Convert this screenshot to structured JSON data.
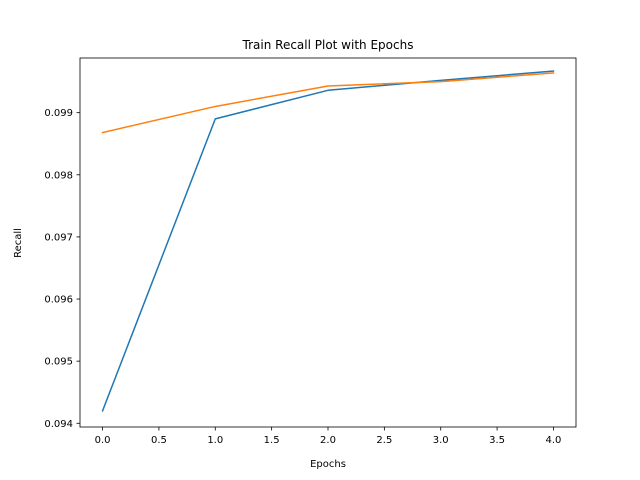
{
  "chart_data": {
    "type": "line",
    "title": "Train Recall Plot with Epochs",
    "xlabel": "Epochs",
    "ylabel": "Recall",
    "x": [
      0,
      1,
      2,
      3,
      4
    ],
    "xlim": [
      -0.2,
      4.2
    ],
    "ylim": [
      0.09394,
      0.09988
    ],
    "xticks": [
      0.0,
      0.5,
      1.0,
      1.5,
      2.0,
      2.5,
      3.0,
      3.5,
      4.0
    ],
    "xtick_labels": [
      "0.0",
      "0.5",
      "1.0",
      "1.5",
      "2.0",
      "2.5",
      "3.0",
      "3.5",
      "4.0"
    ],
    "yticks": [
      0.094,
      0.095,
      0.096,
      0.097,
      0.098,
      0.099
    ],
    "ytick_labels": [
      "0.094",
      "0.095",
      "0.096",
      "0.097",
      "0.098",
      "0.099"
    ],
    "grid": false,
    "legend": false,
    "series": [
      {
        "color": "#1f77b4",
        "values": [
          0.0942,
          0.0989,
          0.09936,
          0.09952,
          0.09967
        ]
      },
      {
        "color": "#ff7f0e",
        "values": [
          0.09868,
          0.0991,
          0.09943,
          0.0995,
          0.09964
        ]
      }
    ]
  }
}
